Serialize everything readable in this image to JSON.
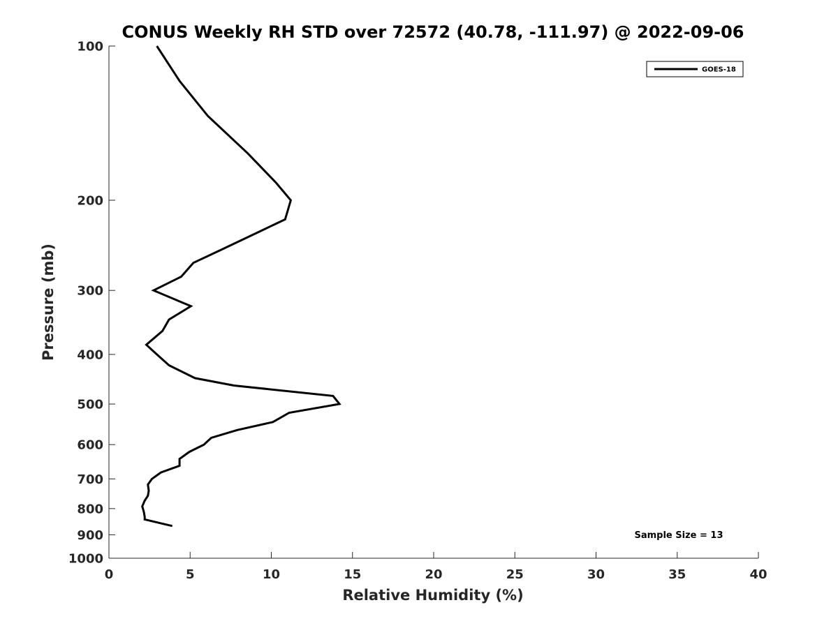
{
  "chart_data": {
    "type": "line",
    "title": "CONUS Weekly RH STD over 72572 (40.78, -111.97) @ 2022-09-06",
    "xlabel": "Relative Humidity (%)",
    "ylabel": "Pressure (mb)",
    "xlim": [
      0,
      40
    ],
    "ylim": [
      100,
      1000
    ],
    "y_scale": "log",
    "y_reversed": true,
    "x_ticks": [
      "0",
      "5",
      "10",
      "15",
      "20",
      "25",
      "30",
      "35",
      "40"
    ],
    "y_ticks": [
      "100",
      "200",
      "300",
      "400",
      "500",
      "600",
      "700",
      "800",
      "900",
      "1000"
    ],
    "grid": false,
    "legend": {
      "position": "top-right",
      "entries": [
        "GOES-18"
      ]
    },
    "annotation": "Sample Size = 13",
    "series": [
      {
        "name": "GOES-18",
        "color": "#000000",
        "points": [
          [
            2.95,
            100
          ],
          [
            4.35,
            117
          ],
          [
            6.1,
            137
          ],
          [
            8.55,
            162
          ],
          [
            10.3,
            185
          ],
          [
            11.2,
            200
          ],
          [
            10.85,
            218
          ],
          [
            6.9,
            250
          ],
          [
            5.2,
            265
          ],
          [
            4.45,
            282
          ],
          [
            2.75,
            300
          ],
          [
            5.05,
            322
          ],
          [
            3.7,
            342
          ],
          [
            3.3,
            360
          ],
          [
            2.3,
            383
          ],
          [
            2.95,
            400
          ],
          [
            3.7,
            420
          ],
          [
            5.3,
            445
          ],
          [
            7.7,
            460
          ],
          [
            13.8,
            482
          ],
          [
            14.2,
            500
          ],
          [
            11.1,
            520
          ],
          [
            10.1,
            542
          ],
          [
            7.9,
            562
          ],
          [
            6.3,
            582
          ],
          [
            5.85,
            600
          ],
          [
            4.95,
            620
          ],
          [
            4.35,
            640
          ],
          [
            4.35,
            660
          ],
          [
            3.2,
            680
          ],
          [
            2.65,
            700
          ],
          [
            2.4,
            718
          ],
          [
            2.45,
            738
          ],
          [
            2.4,
            755
          ],
          [
            2.2,
            772
          ],
          [
            2.05,
            792
          ],
          [
            2.15,
            812
          ],
          [
            2.2,
            830
          ],
          [
            2.2,
            840
          ],
          [
            3.9,
            865
          ]
        ]
      }
    ]
  }
}
